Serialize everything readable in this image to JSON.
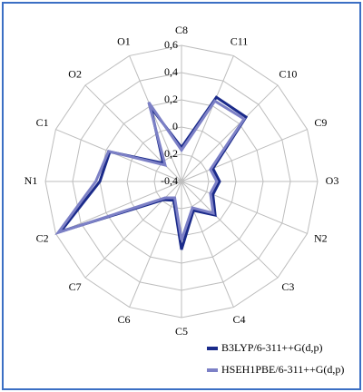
{
  "chart_data": {
    "type": "radar",
    "categories": [
      "C8",
      "C11",
      "C10",
      "C9",
      "O3",
      "N2",
      "C3",
      "C4",
      "C5",
      "C6",
      "C7",
      "C2",
      "N1",
      "C1",
      "O2",
      "O1"
    ],
    "series": [
      {
        "name": "B3LYP/6-311++G(d,p)",
        "color": "#1a2a8a",
        "values": [
          -0.15,
          0.27,
          0.27,
          -0.15,
          -0.12,
          -0.15,
          -0.05,
          -0.17,
          0.1,
          -0.25,
          -0.21,
          0.56,
          0.2,
          0.17,
          -0.21,
          0.19
        ]
      },
      {
        "name": "HSEH1PBE/6-311++G(d,p)",
        "color": "#7c80c6",
        "values": [
          -0.17,
          0.24,
          0.25,
          -0.17,
          -0.14,
          -0.17,
          -0.07,
          -0.19,
          0.03,
          -0.27,
          -0.23,
          0.58,
          0.23,
          0.18,
          -0.23,
          0.23
        ]
      }
    ],
    "ylim": [
      -0.4,
      0.6
    ],
    "yticks": [
      {
        "value": -0.4,
        "label": "-0,4"
      },
      {
        "value": -0.2,
        "label": "-0,2"
      },
      {
        "value": 0,
        "label": "0"
      },
      {
        "value": 0.2,
        "label": "0,2"
      },
      {
        "value": 0.4,
        "label": "0,4"
      },
      {
        "value": 0.6,
        "label": "0,6"
      }
    ],
    "grid": true,
    "legend": "bottom-right"
  }
}
